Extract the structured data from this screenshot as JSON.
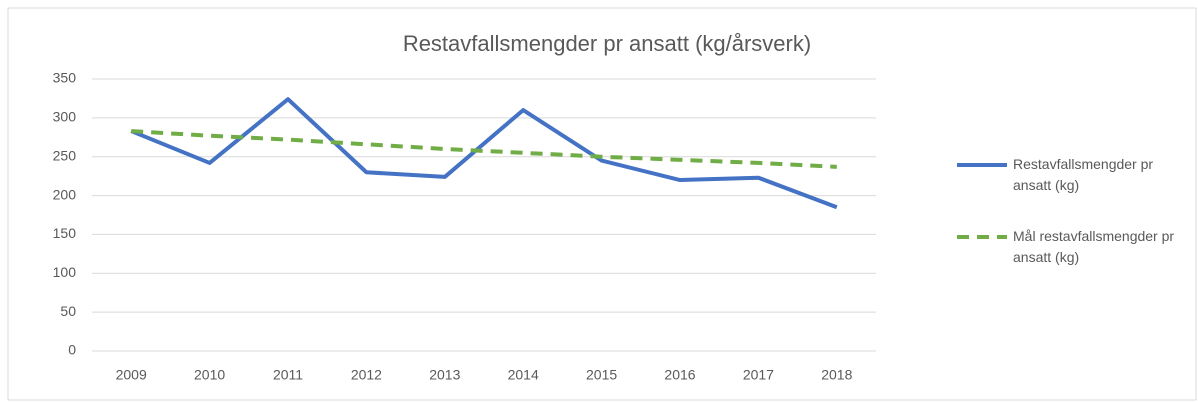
{
  "chart_data": {
    "type": "line",
    "title": "Restavfallsmengder pr ansatt (kg/årsverk)",
    "categories": [
      "2009",
      "2010",
      "2011",
      "2012",
      "2013",
      "2014",
      "2015",
      "2016",
      "2017",
      "2018"
    ],
    "series": [
      {
        "name": "Restavfallsmengder pr ansatt (kg)",
        "color": "#4472c4",
        "style": "solid",
        "values": [
          283,
          242,
          324,
          230,
          224,
          310,
          245,
          220,
          223,
          185
        ]
      },
      {
        "name": "Mål restavfallsmengder pr ansatt (kg)",
        "color": "#70ad47",
        "style": "dashed",
        "values": [
          283,
          277,
          272,
          266,
          260,
          255,
          250,
          246,
          242,
          237
        ]
      }
    ],
    "ylim": [
      0,
      350
    ],
    "yticks": [
      0,
      50,
      100,
      150,
      200,
      250,
      300,
      350
    ],
    "grid": true,
    "legend": "right"
  }
}
